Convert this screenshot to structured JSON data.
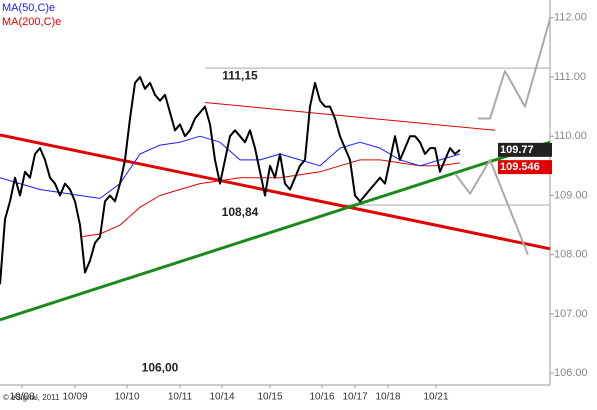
{
  "chart_data": {
    "type": "line",
    "legend_texts_note_free": null,
    "series": [
      {
        "color": "#000000",
        "width": 2,
        "x": [
          0,
          1,
          2,
          3,
          4,
          5,
          6,
          7,
          8,
          9,
          10,
          11,
          12,
          13,
          14,
          15,
          16,
          17,
          18,
          19,
          20,
          21,
          22,
          23,
          24,
          25,
          26,
          27,
          28,
          29,
          30,
          31,
          32,
          33,
          34,
          35,
          36,
          37,
          38,
          39,
          40,
          41,
          42,
          43,
          44,
          45,
          46,
          47,
          48,
          49,
          50,
          51,
          52,
          53,
          54,
          55,
          56,
          57,
          58,
          59,
          60,
          61,
          62,
          63,
          64,
          65,
          66,
          67,
          68,
          69,
          70,
          71,
          72,
          73,
          74,
          75,
          76,
          77,
          78,
          79,
          80,
          81,
          82,
          83,
          84,
          85,
          86,
          87,
          88,
          89,
          90,
          91,
          92
        ],
        "values": [
          107.5,
          108.6,
          108.9,
          109.3,
          109.0,
          109.4,
          109.3,
          109.7,
          109.8,
          109.6,
          109.3,
          109.2,
          109.0,
          109.2,
          109.1,
          108.9,
          108.5,
          107.7,
          107.9,
          108.2,
          108.3,
          108.9,
          109.0,
          108.9,
          109.2,
          109.6,
          110.3,
          110.9,
          111.0,
          110.8,
          110.9,
          110.7,
          110.6,
          110.7,
          110.4,
          110.1,
          110.2,
          110.0,
          110.1,
          110.3,
          110.4,
          110.5,
          110.2,
          109.6,
          109.2,
          109.6,
          110.0,
          110.1,
          110.0,
          109.9,
          110.1,
          109.8,
          109.4,
          109.0,
          109.5,
          109.3,
          109.7,
          109.2,
          109.1,
          109.3,
          109.5,
          109.6,
          110.5,
          110.9,
          110.6,
          110.5,
          110.5,
          110.3,
          110.0,
          109.8,
          109.6,
          109.0,
          108.9,
          109.0,
          109.1,
          109.2,
          109.3,
          109.2,
          109.6,
          110.0,
          109.6,
          109.8,
          110.0,
          110.0,
          109.9,
          109.7,
          109.8,
          109.8,
          109.4,
          109.6,
          109.8,
          109.7,
          109.77
        ]
      },
      {
        "name": "MA(50,C)e",
        "color": "#1a1aff",
        "width": 1,
        "x": [
          0,
          4,
          8,
          12,
          16,
          20,
          24,
          28,
          32,
          36,
          40,
          44,
          48,
          52,
          56,
          60,
          64,
          68,
          72,
          76,
          80,
          84,
          88,
          92
        ],
        "values": [
          109.3,
          109.2,
          109.1,
          109.05,
          109.0,
          108.95,
          109.2,
          109.7,
          109.85,
          109.9,
          110.0,
          109.9,
          109.6,
          109.6,
          109.7,
          109.6,
          109.5,
          109.8,
          109.9,
          109.8,
          109.6,
          109.5,
          109.6,
          109.7
        ]
      },
      {
        "name": "MA(200,C)e",
        "color": "#e00000",
        "width": 1,
        "x": [
          0,
          4,
          8,
          12,
          16,
          20,
          24,
          28,
          32,
          36,
          40,
          44,
          48,
          52,
          56,
          60,
          64,
          68,
          72,
          76,
          80,
          84,
          88,
          92
        ],
        "values": [
          null,
          null,
          null,
          null,
          108.3,
          108.35,
          108.5,
          108.8,
          109.0,
          109.1,
          109.2,
          109.25,
          109.3,
          109.3,
          109.3,
          109.35,
          109.4,
          109.5,
          109.6,
          109.6,
          109.55,
          109.5,
          109.5,
          109.55
        ]
      }
    ],
    "trendlines": [
      {
        "color": "#e00000",
        "width": 3,
        "x": [
          0,
          110
        ],
        "values": [
          110.02,
          108.1
        ]
      },
      {
        "color": "#1a8a1a",
        "width": 3,
        "x": [
          0,
          110
        ],
        "values": [
          106.9,
          109.9
        ]
      },
      {
        "color": "#e00000",
        "width": 1,
        "x": [
          41,
          99
        ],
        "values": [
          110.57,
          110.1
        ]
      },
      {
        "color": "#aaaaaa",
        "width": 2,
        "x": [
          95.6,
          98,
          101,
          105,
          110
        ],
        "values": [
          110.3,
          110.3,
          111.1,
          110.5,
          111.98
        ]
      },
      {
        "color": "#aaaaaa",
        "width": 2,
        "x": [
          91,
          94,
          98,
          105.6
        ],
        "values": [
          109.37,
          109.03,
          109.6,
          108.0
        ]
      }
    ],
    "levels": [
      {
        "value": 111.15,
        "label": "111,15",
        "line": true,
        "line_from": 41,
        "label_at": 48
      },
      {
        "value": 108.84,
        "label": "108,84",
        "line": true,
        "line_from": 69,
        "label_at": 48
      },
      {
        "value": 106.0,
        "label": "106,00",
        "line": false,
        "line_from": 0,
        "label_at": 32
      }
    ],
    "price_tags": [
      {
        "value": 109.77,
        "color": "#222222"
      },
      {
        "value": 109.546,
        "color": "#e00000"
      }
    ],
    "xlim": [
      0,
      110
    ],
    "ylim": [
      105.8,
      112.3
    ],
    "yticks": [
      {
        "value": 106,
        "label": "106.00"
      },
      {
        "value": 107,
        "label": "107.00"
      },
      {
        "value": 108,
        "label": "108.00"
      },
      {
        "value": 109,
        "label": "109.00"
      },
      {
        "value": 110,
        "label": "110.00"
      },
      {
        "value": 111,
        "label": "111.00"
      },
      {
        "value": 112,
        "label": "112.00"
      }
    ],
    "xticks": [
      {
        "value": 4.4,
        "label": "10/08"
      },
      {
        "value": 15,
        "label": "10/09"
      },
      {
        "value": 25.4,
        "label": "10/10"
      },
      {
        "value": 36,
        "label": "10/11"
      },
      {
        "value": 44.4,
        "label": "10/14"
      },
      {
        "value": 54,
        "label": "10/15"
      },
      {
        "value": 64.4,
        "label": "10/16"
      },
      {
        "value": 71,
        "label": "10/17"
      },
      {
        "value": 77.6,
        "label": "10/18"
      },
      {
        "value": 87.2,
        "label": "10/21"
      }
    ],
    "source": "© eSignal, 2011"
  }
}
